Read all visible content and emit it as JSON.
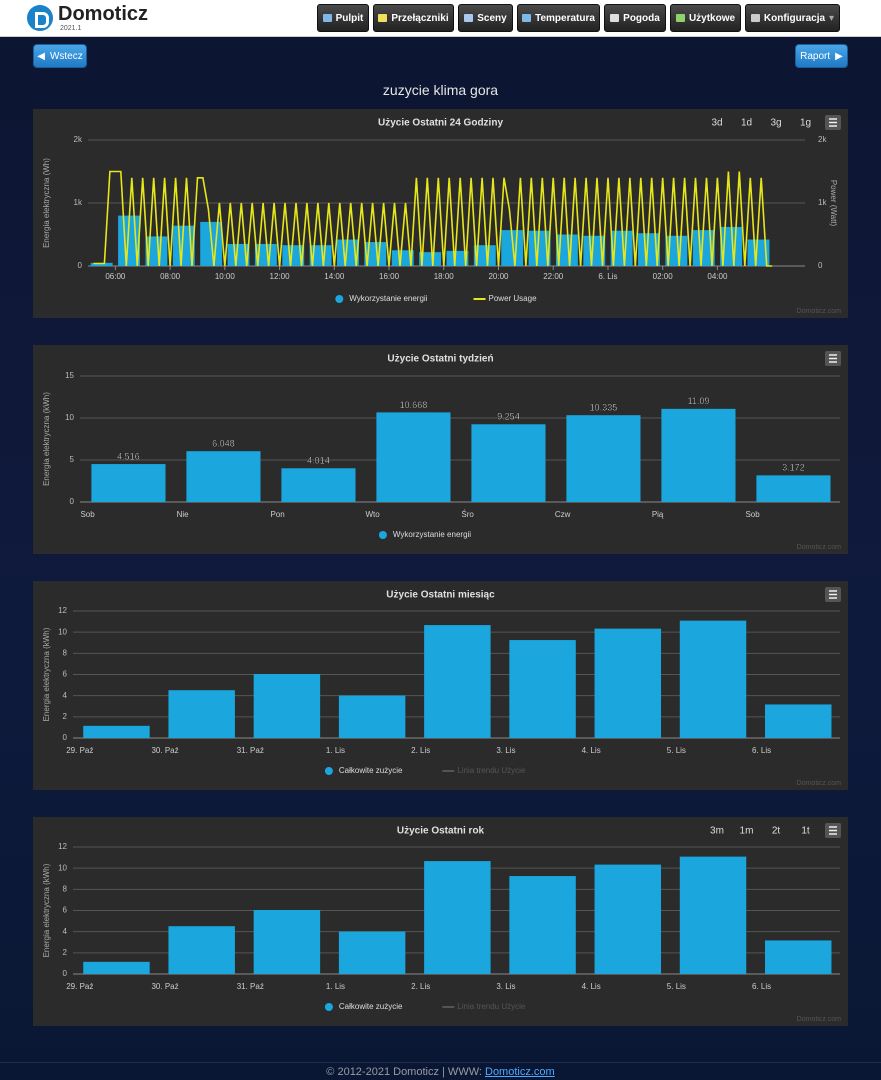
{
  "header": {
    "logo": "Domoticz",
    "version": "2021.1",
    "nav": [
      "Pulpit",
      "Przełączniki",
      "Sceny",
      "Temperatura",
      "Pogoda",
      "Użytkowe",
      "Konfiguracja"
    ]
  },
  "buttons": {
    "back": "Wstecz",
    "report": "Raport"
  },
  "page_title": "zuzycie klima gora",
  "chart_data": [
    {
      "type": "combo",
      "title": "Użycie Ostatni 24 Godziny",
      "range_buttons": [
        "3d",
        "1d",
        "3g",
        "1g"
      ],
      "ylabel": "Energia elektryczna (Wh)",
      "y2label": "Power (Watt)",
      "xlim": [
        5,
        31.2
      ],
      "xticks": [
        {
          "value": 6,
          "label": "06:00"
        },
        {
          "value": 8,
          "label": "08:00"
        },
        {
          "value": 10,
          "label": "10:00"
        },
        {
          "value": 12,
          "label": "12:00"
        },
        {
          "value": 14,
          "label": "14:00"
        },
        {
          "value": 16,
          "label": "16:00"
        },
        {
          "value": 18,
          "label": "18:00"
        },
        {
          "value": 20,
          "label": "20:00"
        },
        {
          "value": 22,
          "label": "22:00"
        },
        {
          "value": 24,
          "label": "6. Lis"
        },
        {
          "value": 26,
          "label": "02:00"
        },
        {
          "value": 28,
          "label": "04:00"
        }
      ],
      "ylim": [
        0,
        2000
      ],
      "yticks": [
        0,
        {
          "value": 1000,
          "label": "1k"
        },
        {
          "value": 2000,
          "label": "2k"
        }
      ],
      "y2lim": [
        0,
        2000
      ],
      "y2ticks": [
        0,
        {
          "value": 1000,
          "label": "1k"
        },
        {
          "value": 2000,
          "label": "2k"
        }
      ],
      "grid": true,
      "credits": "Domoticz.com",
      "series": [
        {
          "name": "Wykorzystanie energii",
          "type": "column",
          "color": "#1ba6dd",
          "x": [
            5,
            6,
            7,
            8,
            9,
            10,
            11,
            12,
            13,
            14,
            15,
            16,
            17,
            18,
            19,
            20,
            21,
            22,
            23,
            24,
            25,
            26,
            27,
            28,
            29
          ],
          "values": [
            50,
            800,
            470,
            640,
            700,
            350,
            350,
            330,
            330,
            420,
            380,
            250,
            220,
            240,
            330,
            570,
            560,
            500,
            480,
            560,
            520,
            480,
            570,
            620,
            420
          ]
        },
        {
          "name": "Power Usage",
          "type": "line",
          "axis": "y2",
          "color": "#e6e619",
          "x": [
            5.2,
            5.4,
            5.6,
            5.8,
            6,
            6.2,
            6.4,
            6.6,
            6.8,
            7,
            7.2,
            7.4,
            7.6,
            7.8,
            8,
            8.2,
            8.4,
            8.6,
            8.8,
            9,
            9.2,
            9.4,
            9.6,
            9.8,
            10,
            10.2,
            10.4,
            10.6,
            10.8,
            11,
            11.2,
            11.4,
            11.6,
            11.8,
            12,
            12.2,
            12.4,
            12.6,
            12.8,
            13,
            13.2,
            13.4,
            13.6,
            13.8,
            14,
            14.2,
            14.4,
            14.6,
            14.8,
            15,
            15.2,
            15.4,
            15.6,
            15.8,
            16,
            16.2,
            16.4,
            16.6,
            16.8,
            17,
            17.2,
            17.4,
            17.6,
            17.8,
            18,
            18.2,
            18.4,
            18.6,
            18.8,
            19,
            19.2,
            19.4,
            19.6,
            19.8,
            20,
            20.2,
            20.4,
            20.6,
            20.8,
            21,
            21.2,
            21.4,
            21.6,
            21.8,
            22,
            22.2,
            22.4,
            22.6,
            22.8,
            23,
            23.2,
            23.4,
            23.6,
            23.8,
            24,
            24.2,
            24.4,
            24.6,
            24.8,
            25,
            25.2,
            25.4,
            25.6,
            25.8,
            26,
            26.2,
            26.4,
            26.6,
            26.8,
            27,
            27.2,
            27.4,
            27.6,
            27.8,
            28,
            28.2,
            28.4,
            28.6,
            28.8,
            29,
            29.2,
            29.4,
            29.6,
            29.8,
            30
          ],
          "values": [
            40,
            40,
            40,
            1500,
            1500,
            1500,
            0,
            1400,
            0,
            1400,
            0,
            1400,
            0,
            1400,
            0,
            1400,
            0,
            1400,
            0,
            1400,
            1400,
            900,
            0,
            1000,
            0,
            1000,
            0,
            1000,
            0,
            1000,
            0,
            1000,
            0,
            1000,
            0,
            1000,
            0,
            1000,
            0,
            1000,
            0,
            1000,
            0,
            1000,
            0,
            1000,
            0,
            1000,
            0,
            1000,
            0,
            1000,
            0,
            1000,
            0,
            1000,
            0,
            1000,
            0,
            1400,
            0,
            1400,
            0,
            1400,
            0,
            1400,
            0,
            1400,
            0,
            1400,
            0,
            1400,
            0,
            1400,
            0,
            1400,
            900,
            0,
            1400,
            0,
            1400,
            0,
            1400,
            0,
            1400,
            0,
            1400,
            0,
            1400,
            0,
            1400,
            0,
            1400,
            0,
            1400,
            0,
            1400,
            0,
            1400,
            0,
            1400,
            0,
            1400,
            0,
            1400,
            0,
            1400,
            0,
            1400,
            0,
            1400,
            0,
            1400,
            0,
            1400,
            0,
            1500,
            0,
            1500,
            0,
            1400,
            0,
            1400,
            0,
            0
          ]
        }
      ]
    },
    {
      "type": "bar",
      "title": "Użycie Ostatni tydzień",
      "ylabel": "Energia elektryczna (kWh)",
      "categories": [
        "Sob",
        "Nie",
        "Pon",
        "Wto",
        "Śro",
        "Czw",
        "Pią",
        "Sob"
      ],
      "ylim": [
        0,
        15
      ],
      "yticks": [
        0,
        5,
        10,
        15
      ],
      "grid": true,
      "data_labels": true,
      "credits": "Domoticz.com",
      "series": [
        {
          "name": "Wykorzystanie energii",
          "color": "#1ba6dd",
          "values": [
            4.516,
            6.048,
            4.014,
            10.668,
            9.254,
            10.335,
            11.09,
            3.172
          ]
        }
      ]
    },
    {
      "type": "bar",
      "title": "Użycie Ostatni miesiąc",
      "ylabel": "Energia elektryczna (kWh)",
      "categories": [
        "29. Paź",
        "30. Paź",
        "31. Paź",
        "1. Lis",
        "2. Lis",
        "3. Lis",
        "4. Lis",
        "5. Lis",
        "6. Lis"
      ],
      "ylim": [
        0,
        12
      ],
      "yticks": [
        0,
        2,
        4,
        6,
        8,
        10,
        12
      ],
      "grid": true,
      "credits": "Domoticz.com",
      "series": [
        {
          "name": "Całkowite zużycie",
          "color": "#1ba6dd",
          "values": [
            1.15,
            4.516,
            6.048,
            4.014,
            10.668,
            9.254,
            10.335,
            11.09,
            3.172
          ]
        },
        {
          "name": "Linia trendu Użycie",
          "color": "#666666",
          "visible": false
        }
      ]
    },
    {
      "type": "bar",
      "title": "Użycie Ostatni rok",
      "range_buttons": [
        "3m",
        "1m",
        "2t",
        "1t"
      ],
      "ylabel": "Energia elektryczna (kWh)",
      "categories": [
        "29. Paź",
        "30. Paź",
        "31. Paź",
        "1. Lis",
        "2. Lis",
        "3. Lis",
        "4. Lis",
        "5. Lis",
        "6. Lis"
      ],
      "ylim": [
        0,
        12
      ],
      "yticks": [
        0,
        2,
        4,
        6,
        8,
        10,
        12
      ],
      "grid": true,
      "credits": "Domoticz.com",
      "series": [
        {
          "name": "Całkowite zużycie",
          "color": "#1ba6dd",
          "values": [
            1.15,
            4.516,
            6.048,
            4.014,
            10.668,
            9.254,
            10.335,
            11.09,
            3.172
          ]
        },
        {
          "name": "Linia trendu Użycie",
          "color": "#666666",
          "visible": false
        }
      ]
    }
  ],
  "footer": {
    "text": "© 2012-2021 Domoticz | WWW:",
    "link": "Domoticz.com"
  }
}
